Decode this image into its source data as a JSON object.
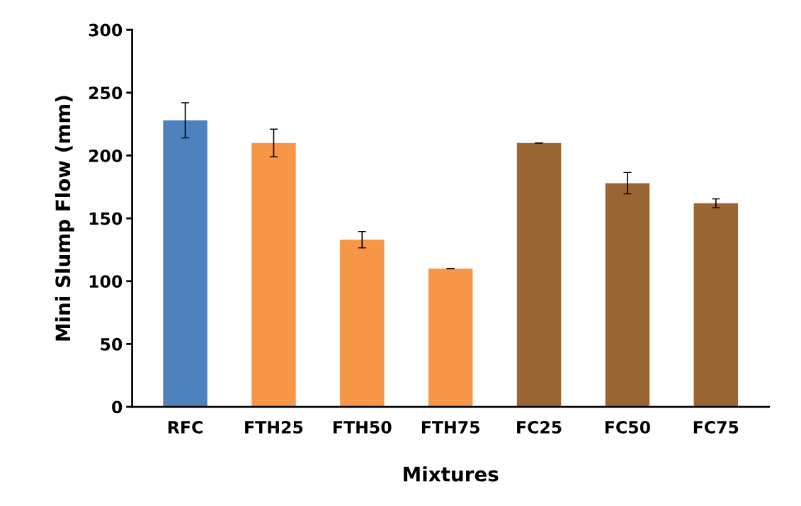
{
  "chart_data": {
    "type": "bar",
    "xlabel": "Mixtures",
    "ylabel": "Mini Slump Flow (mm)",
    "categories": [
      "RFC",
      "FTH25",
      "FTH50",
      "FTH75",
      "FC25",
      "FC50",
      "FC75"
    ],
    "values": [
      228,
      210,
      133,
      110,
      210,
      178,
      162
    ],
    "errors": [
      14,
      11,
      6.5,
      0,
      0,
      8.5,
      3.5
    ],
    "colors": [
      "#4f81bd",
      "#f79646",
      "#f79646",
      "#f79646",
      "#996633",
      "#996633",
      "#996633"
    ],
    "ylim": [
      0,
      300
    ],
    "yticks": [
      0,
      50,
      100,
      150,
      200,
      250,
      300
    ],
    "grid": false
  }
}
